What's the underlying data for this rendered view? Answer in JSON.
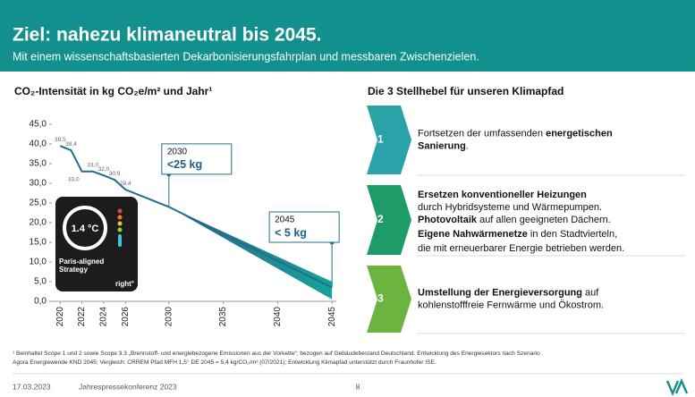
{
  "header": {
    "title": "Ziel: nahezu klimaneutral bis 2045.",
    "subtitle": "Mit einem wissenschaftsbasierten Dekarbonisierungsfahrplan und messbaren Zwischenzielen."
  },
  "chart_data": {
    "type": "line",
    "title": "CO₂-Intensität in kg CO₂e/m² und Jahr¹",
    "x": [
      2020,
      2021,
      2022,
      2023,
      2024,
      2025,
      2026,
      2030,
      2045
    ],
    "series": [
      {
        "color": "#1f6f8b",
        "values": [
          39.5,
          38.4,
          33.0,
          33.0,
          32.0,
          30.9,
          28.4,
          24,
          3.5
        ],
        "value_labels": [
          "39,5",
          "38,4",
          "33,0",
          "33,0",
          "32,0",
          "30,9",
          "28,4",
          null,
          null
        ]
      }
    ],
    "band": {
      "x": [
        2030,
        2045
      ],
      "upper": [
        24,
        5
      ],
      "lower": [
        24,
        0.5
      ],
      "color": "#1a8a8f"
    },
    "annotations": [
      {
        "x": 2030,
        "y": 32.3,
        "label": "2030",
        "text": "<25 kg"
      },
      {
        "x": 2045,
        "y": 15,
        "label": "2045",
        "text": "< 5 kg"
      }
    ],
    "xlim": [
      2019.4,
      2045.4
    ],
    "xticks": [
      2020,
      2022,
      2024,
      2026,
      2030,
      2035,
      2040,
      2045
    ],
    "ylim": [
      0,
      45
    ],
    "yticks": [
      {
        "value": 0,
        "label": "0,0"
      },
      {
        "value": 5,
        "label": "5,0"
      },
      {
        "value": 10,
        "label": "10,0"
      },
      {
        "value": 15,
        "label": "15,0"
      },
      {
        "value": 20,
        "label": "20,0"
      },
      {
        "value": 25,
        "label": "25,0"
      },
      {
        "value": 30,
        "label": "30,0"
      },
      {
        "value": 35,
        "label": "35,0"
      },
      {
        "value": 40,
        "label": "40,0"
      },
      {
        "value": 45,
        "label": "45,0"
      }
    ],
    "badge": {
      "temp": "1.4 °C",
      "text": "Paris-aligned Strategy",
      "brand": "right°"
    }
  },
  "levers": {
    "title": "Die 3 Stellhebel für unseren Klimapfad",
    "items": [
      {
        "number": "1",
        "lines": [
          [
            {
              "text": "Fortsetzen der umfassenden "
            },
            {
              "text": "energetischen",
              "bold": true
            }
          ],
          [
            {
              "text": "Sanierung",
              "bold": true
            },
            {
              "text": "."
            }
          ]
        ]
      },
      {
        "number": "2",
        "lines": [
          [
            {
              "text": "Ersetzen konventioneller Heizungen",
              "bold": true
            }
          ],
          [
            {
              "text": "durch Hybridsysteme und Wärmepumpen."
            }
          ],
          [
            {
              "text": "Photovoltaik",
              "bold": true
            },
            {
              "text": " auf allen geeigneten Dächern."
            }
          ],
          [
            {
              "text": "Eigene Nahwärmenetze",
              "bold": true
            },
            {
              "text": " in den Stadtvierteln,"
            }
          ],
          [
            {
              "text": "die mit erneuerbarer Energie betrieben werden."
            }
          ]
        ]
      },
      {
        "number": "3",
        "lines": [
          [
            {
              "text": "Umstellung der Energieversorgung",
              "bold": true
            },
            {
              "text": " auf"
            }
          ],
          [
            {
              "text": "kohlenstofffreie Fernwärme und Ökostrom."
            }
          ]
        ]
      }
    ]
  },
  "footnote": [
    "¹ Beinhaltet Scope 1 und 2 sowie Scope 3.3 „Brennstoff- und energiebezogene Emissionen aus der Vorkette“; bezogen auf Gebäudebestand Deutschland. Entwicklung des Energiesektors nach Szenario",
    "Agora Energiewende KND 2045; Vergleich: CRREM Pfad MFH 1,5° DE 2045 = 5,4 kg/CO₂/m² (07/2021); Entwicklung Klimapfad unterstützt durch Fraunhofer ISE."
  ],
  "footer": {
    "date": "17.03.2023",
    "event": "Jahrespressekonferenz 2023",
    "page": "8"
  }
}
